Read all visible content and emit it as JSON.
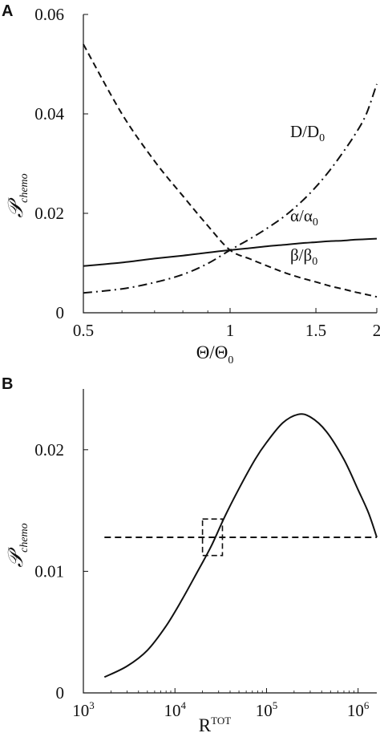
{
  "figure": {
    "panels": [
      {
        "label": "A",
        "ylabel": "𝒫",
        "ylabel_sub": "chemo",
        "xlabel": "Θ/Θ",
        "xlabel_sub": "0"
      },
      {
        "label": "B",
        "ylabel": "𝒫",
        "ylabel_sub": "chemo",
        "xlabel": "R",
        "xlabel_sup": "TOT"
      }
    ]
  },
  "chart_data": [
    {
      "type": "line",
      "panel": "A",
      "xscale": "log",
      "xlim": [
        0.5,
        2
      ],
      "ylim": [
        0,
        0.06
      ],
      "x_ticks": [
        {
          "value": 0.5,
          "label": "0.5"
        },
        {
          "value": 1,
          "label": "1"
        },
        {
          "value": 1.5,
          "label": "1.5"
        },
        {
          "value": 2,
          "label": "2"
        }
      ],
      "y_ticks": [
        {
          "value": 0,
          "label": "0"
        },
        {
          "value": 0.02,
          "label": "0.02"
        },
        {
          "value": 0.04,
          "label": "0.04"
        },
        {
          "value": 0.06,
          "label": "0.06"
        }
      ],
      "series": [
        {
          "name": "D/D",
          "name_sub": "0",
          "style": "dashdot",
          "x": [
            0.5,
            0.6,
            0.7,
            0.8,
            0.9,
            1.0,
            1.1,
            1.2,
            1.3,
            1.4,
            1.5,
            1.6,
            1.7,
            1.8,
            1.9,
            2.0
          ],
          "y": [
            0.004,
            0.0048,
            0.0061,
            0.0077,
            0.0099,
            0.0126,
            0.0149,
            0.0172,
            0.0196,
            0.0223,
            0.0253,
            0.0286,
            0.0321,
            0.0357,
            0.0398,
            0.046
          ]
        },
        {
          "name": "α/α",
          "name_sub": "0",
          "style": "solid",
          "x": [
            0.5,
            0.6,
            0.7,
            0.8,
            0.9,
            1.0,
            1.1,
            1.2,
            1.3,
            1.4,
            1.5,
            1.6,
            1.7,
            1.8,
            1.9,
            2.0
          ],
          "y": [
            0.0094,
            0.0101,
            0.0109,
            0.0115,
            0.0121,
            0.0126,
            0.013,
            0.0134,
            0.0137,
            0.014,
            0.0142,
            0.0144,
            0.0145,
            0.0147,
            0.0148,
            0.0149
          ]
        },
        {
          "name": "β/β",
          "name_sub": "0",
          "style": "dashed",
          "x": [
            0.5,
            0.6,
            0.7,
            0.8,
            0.9,
            1.0,
            1.1,
            1.2,
            1.3,
            1.4,
            1.5,
            1.6,
            1.7,
            1.8,
            1.9,
            2.0
          ],
          "y": [
            0.054,
            0.04,
            0.0305,
            0.0235,
            0.0175,
            0.0126,
            0.0108,
            0.0093,
            0.008,
            0.007,
            0.0062,
            0.0054,
            0.0048,
            0.0042,
            0.0037,
            0.0032
          ]
        }
      ]
    },
    {
      "type": "line",
      "panel": "B",
      "xscale": "log",
      "xlim": [
        1000,
        1600000
      ],
      "ylim": [
        0,
        0.025
      ],
      "x_ticks": [
        {
          "value": 1000,
          "label": "10",
          "sup": "3"
        },
        {
          "value": 10000,
          "label": "10",
          "sup": "4"
        },
        {
          "value": 100000,
          "label": "10",
          "sup": "5"
        },
        {
          "value": 1000000,
          "label": "10",
          "sup": "6"
        }
      ],
      "y_ticks": [
        {
          "value": 0,
          "label": "0"
        },
        {
          "value": 0.01,
          "label": "0.01"
        },
        {
          "value": 0.02,
          "label": "0.02"
        }
      ],
      "series": [
        {
          "style": "solid",
          "x": [
            1700,
            3000,
            5000,
            8000,
            12000,
            18000,
            25000,
            35000,
            50000,
            75000,
            100000,
            150000,
            220000,
            300000,
            450000,
            700000,
            1000000,
            1300000,
            1600000
          ],
          "y": [
            0.0013,
            0.0022,
            0.0035,
            0.0055,
            0.0077,
            0.0101,
            0.0121,
            0.0145,
            0.0168,
            0.0192,
            0.0206,
            0.0222,
            0.0229,
            0.0227,
            0.0215,
            0.0192,
            0.0167,
            0.0148,
            0.0128
          ]
        },
        {
          "style": "dashed",
          "x": [
            1700,
            1600000
          ],
          "y": [
            0.0128,
            0.0128
          ]
        }
      ],
      "annotations": [
        {
          "type": "dashed-box",
          "x": [
            20000,
            33000
          ],
          "y": [
            0.0113,
            0.0143
          ]
        }
      ]
    }
  ]
}
